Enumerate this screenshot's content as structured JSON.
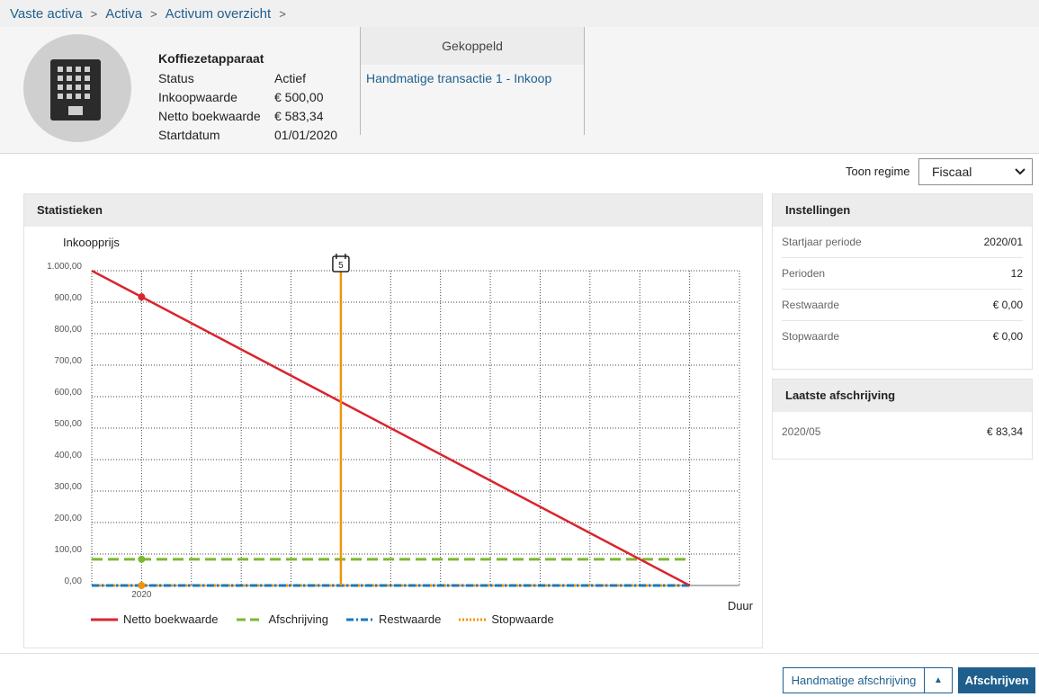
{
  "breadcrumb": [
    {
      "label": "Vaste activa"
    },
    {
      "label": "Activa"
    },
    {
      "label": "Activum overzicht"
    }
  ],
  "breadcrumb_separator": ">",
  "asset": {
    "name": "Koffiezetapparaat",
    "icon": "building-icon",
    "properties": [
      {
        "key": "Status",
        "value": "Actief"
      },
      {
        "key": "Inkoopwaarde",
        "value": "€ 500,00"
      },
      {
        "key": "Netto boekwaarde",
        "value": "€ 583,34"
      },
      {
        "key": "Startdatum",
        "value": "01/01/2020"
      }
    ]
  },
  "linked": {
    "header": "Gekoppeld",
    "link": "Handmatige transactie 1 - Inkoop"
  },
  "regime": {
    "label": "Toon regime",
    "selected": "Fiscaal"
  },
  "stats": {
    "title": "Statistieken"
  },
  "chart_data": {
    "type": "line",
    "ylabel": "Inkoopprijs",
    "xlabel": "Duur",
    "ylim": [
      0,
      1000
    ],
    "yticks": [
      "1.000,00",
      "900,00",
      "800,00",
      "700,00",
      "600,00",
      "500,00",
      "400,00",
      "300,00",
      "200,00",
      "100,00",
      "0,00"
    ],
    "xtick_labels": [
      {
        "at": 1,
        "label": "2020"
      }
    ],
    "x_range": [
      0,
      13
    ],
    "grid": true,
    "marker_period": 5,
    "marker_label": "5",
    "series": [
      {
        "name": "Netto boekwaarde",
        "color": "#d9262e",
        "style": "solid",
        "x": [
          0,
          1,
          12
        ],
        "y": [
          1000,
          916.67,
          0
        ]
      },
      {
        "name": "Afschrijving",
        "color": "#7cb832",
        "style": "dashed",
        "x": [
          0,
          1,
          5,
          12
        ],
        "y": [
          83.33,
          83.33,
          83.33,
          83.33
        ]
      },
      {
        "name": "Restwaarde",
        "color": "#1a78bf",
        "style": "dashdot",
        "x": [
          0,
          12
        ],
        "y": [
          0,
          0
        ]
      },
      {
        "name": "Stopwaarde",
        "color": "#f0940a",
        "style": "dotted",
        "x": [
          0,
          1,
          12
        ],
        "y": [
          0,
          0,
          0
        ]
      }
    ]
  },
  "settings": {
    "title": "Instellingen",
    "rows": [
      {
        "key": "Startjaar periode",
        "value": "2020/01"
      },
      {
        "key": "Perioden",
        "value": "12"
      },
      {
        "key": "Restwaarde",
        "value": "€ 0,00"
      },
      {
        "key": "Stopwaarde",
        "value": "€ 0,00"
      }
    ]
  },
  "last_depreciation": {
    "title": "Laatste afschrijving",
    "period": "2020/05",
    "amount": "€ 83,34"
  },
  "footer": {
    "manual_button": "Handmatige afschrijving",
    "caret": "▲",
    "primary_button": "Afschrijven"
  }
}
